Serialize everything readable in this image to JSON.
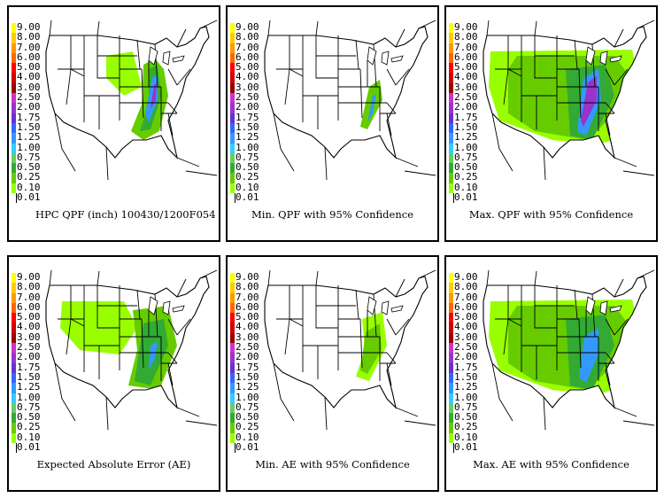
{
  "legend": {
    "levels": [
      "9.00",
      "8.00",
      "7.00",
      "6.00",
      "5.00",
      "4.00",
      "3.00",
      "2.50",
      "2.00",
      "1.75",
      "1.50",
      "1.25",
      "1.00",
      "0.75",
      "0.50",
      "0.25",
      "0.10",
      "0.01"
    ],
    "colors": [
      "#ffff00",
      "#ffcc00",
      "#ff9900",
      "#ff6600",
      "#ff0000",
      "#cc0000",
      "#990000",
      "#cc33cc",
      "#9933cc",
      "#6633cc",
      "#3366ff",
      "#3399ff",
      "#33ccff",
      "#66cc66",
      "#33aa33",
      "#66cc00",
      "#99ff00",
      "#ffffff"
    ]
  },
  "panels": [
    {
      "caption": "HPC QPF (inch) 100430/1200F054",
      "intensity": "full"
    },
    {
      "caption": "Min. QPF with 95% Confidence",
      "intensity": "min"
    },
    {
      "caption": "Max. QPF with 95% Confidence",
      "intensity": "max"
    },
    {
      "caption": "Expected Absolute Error (AE)",
      "intensity": "ae"
    },
    {
      "caption": "Min. AE with 95% Confidence",
      "intensity": "aemin"
    },
    {
      "caption": "Max. AE with 95% Confidence",
      "intensity": "aemax"
    }
  ]
}
